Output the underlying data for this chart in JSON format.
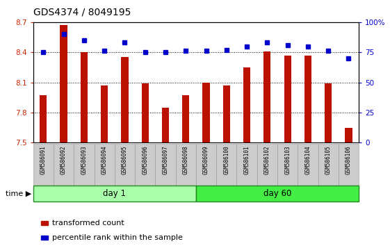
{
  "title": "GDS4374 / 8049195",
  "samples": [
    "GSM586091",
    "GSM586092",
    "GSM586093",
    "GSM586094",
    "GSM586095",
    "GSM586096",
    "GSM586097",
    "GSM586098",
    "GSM586099",
    "GSM586100",
    "GSM586101",
    "GSM586102",
    "GSM586103",
    "GSM586104",
    "GSM586105",
    "GSM586106"
  ],
  "bar_values": [
    7.97,
    8.67,
    8.4,
    8.07,
    8.35,
    8.09,
    7.85,
    7.97,
    8.1,
    8.07,
    8.25,
    8.41,
    8.37,
    8.37,
    8.09,
    7.65
  ],
  "dot_values": [
    75,
    90,
    85,
    76,
    83,
    75,
    75,
    76,
    76,
    77,
    80,
    83,
    81,
    80,
    76,
    70
  ],
  "bar_color": "#bb1100",
  "dot_color": "#0000cc",
  "ylim_left": [
    7.5,
    8.7
  ],
  "ylim_right": [
    0,
    100
  ],
  "yticks_left": [
    7.5,
    7.8,
    8.1,
    8.4,
    8.7
  ],
  "yticks_right": [
    0,
    25,
    50,
    75,
    100
  ],
  "ytick_labels_right": [
    "0",
    "25",
    "50",
    "75",
    "100%"
  ],
  "day1_samples": 8,
  "day60_samples": 8,
  "group_labels": [
    "day 1",
    "day 60"
  ],
  "group_color_light": "#aaffaa",
  "group_color_strong": "#44ee44",
  "group_border_color": "#228822",
  "time_label": "time ▶",
  "legend_bar_label": "transformed count",
  "legend_dot_label": "percentile rank within the sample",
  "background_color": "#ffffff",
  "plot_bg_color": "#ffffff",
  "tick_label_color_left": "#cc2200",
  "tick_label_color_right": "#0000cc",
  "bar_width": 0.35,
  "xlabel_bg": "#cccccc",
  "title_fontsize": 10,
  "axis_fontsize": 7.5
}
